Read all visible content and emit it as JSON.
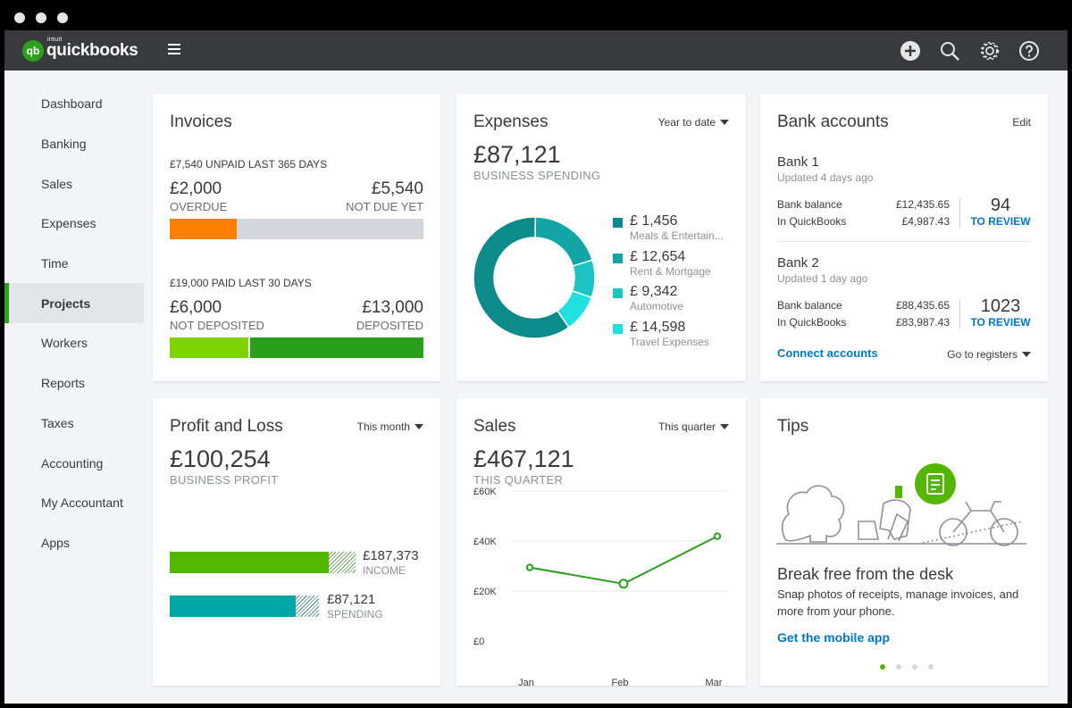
{
  "app": {
    "brand_small": "intuit",
    "brand": "quickbooks",
    "brand_initials": "qb"
  },
  "topbar_icons": [
    "plus-icon",
    "search-icon",
    "gear-icon",
    "help-icon"
  ],
  "sidebar": {
    "items": [
      {
        "label": "Dashboard"
      },
      {
        "label": "Banking"
      },
      {
        "label": "Sales"
      },
      {
        "label": "Expenses"
      },
      {
        "label": "Time"
      },
      {
        "label": "Projects",
        "active": true
      },
      {
        "label": "Workers"
      },
      {
        "label": "Reports"
      },
      {
        "label": "Taxes"
      },
      {
        "label": "Accounting"
      },
      {
        "label": "My Accountant"
      },
      {
        "label": "Apps"
      }
    ]
  },
  "invoices": {
    "title": "Invoices",
    "unpaid_amount": "£7,540 UNPAID",
    "unpaid_period": "LAST 365 DAYS",
    "overdue_value": "£2,000",
    "overdue_label": "OVERDUE",
    "not_due_value": "£5,540",
    "not_due_label": "NOT DUE YET",
    "overdue_fraction": 0.265,
    "paid_amount": "£19,000 PAID",
    "paid_period": "LAST 30 DAYS",
    "not_deposited_value": "£6,000",
    "not_deposited_label": "NOT DEPOSITED",
    "deposited_value": "£13,000",
    "deposited_label": "DEPOSITED",
    "not_deposited_fraction": 0.316
  },
  "expenses": {
    "title": "Expenses",
    "period": "Year to date",
    "total": "£87,121",
    "caption": "BUSINESS SPENDING",
    "categories": [
      {
        "value": "£ 1,456",
        "label": "Meals & Entertain...",
        "color": "#0d8a8a"
      },
      {
        "value": "£ 12,654",
        "label": "Rent & Mortgage",
        "color": "#13a5a5"
      },
      {
        "value": "£ 9,342",
        "label": "Automotive",
        "color": "#1cc3c3"
      },
      {
        "value": "£ 14,598",
        "label": "Travel Expenses",
        "color": "#21e0e0"
      }
    ]
  },
  "bank": {
    "title": "Bank accounts",
    "edit_label": "Edit",
    "accounts": [
      {
        "name": "Bank 1",
        "updated": "Updated 4 days ago",
        "bank_balance_label": "Bank balance",
        "bank_balance": "£12,435.65",
        "qb_label": "In QuickBooks",
        "qb_balance": "£4,987.43",
        "review_count": "94",
        "review_label": "TO REVIEW"
      },
      {
        "name": "Bank 2",
        "updated": "Updated 1 day ago",
        "bank_balance_label": "Bank balance",
        "bank_balance": "£88,435.65",
        "qb_label": "In QuickBooks",
        "qb_balance": "£83,987.43",
        "review_count": "1023",
        "review_label": "TO REVIEW"
      }
    ],
    "connect_label": "Connect accounts",
    "registers_label": "Go to registers"
  },
  "pnl": {
    "title": "Profit and Loss",
    "period": "This month",
    "total": "£100,254",
    "caption": "BUSINESS PROFIT",
    "income_value": "£187,373",
    "income_label": "INCOME",
    "spending_value": "£87,121",
    "spending_label": "SPENDING",
    "income_color": "#53b700",
    "spending_color": "#00a6a4"
  },
  "sales": {
    "title": "Sales",
    "period": "This quarter",
    "total": "£467,121",
    "caption": "THIS QUARTER"
  },
  "chart_data": {
    "type": "line",
    "categories": [
      "Jan",
      "Feb",
      "Mar"
    ],
    "series": [
      {
        "values": [
          33000,
          26500,
          45500
        ]
      }
    ],
    "y_ticks": [
      "£60K",
      "£40K",
      "£20K",
      "£0"
    ],
    "ylim": [
      0,
      60000
    ],
    "grid": true,
    "color": "#2ca01c"
  },
  "tips": {
    "title": "Tips",
    "headline": "Break free from the desk",
    "body": "Snap photos of receipts, manage invoices, and more from your phone.",
    "link": "Get the mobile app",
    "pages": 4,
    "active_page": 0
  }
}
